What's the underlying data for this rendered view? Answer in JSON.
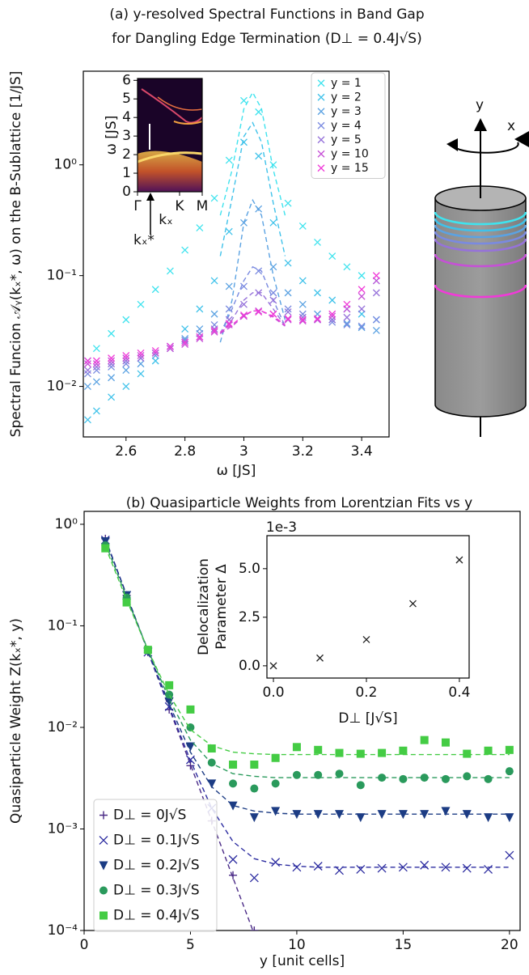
{
  "chart_data": [
    {
      "type": "scatter",
      "title": [
        "(a) y-resolved Spectral Functions in Band Gap",
        "for Dangling Edge Termination (D⊥ = 0.4J√S)"
      ],
      "xlabel": "ω  [JS]",
      "ylabel": [
        "Spectral Funcion 𝒜ᵧ(kₓ*, ω) on the B-Sublattice [1/JS]"
      ],
      "log_y": true,
      "legend": "upper right",
      "marker": "x",
      "xlim": [
        2.455,
        3.493
      ],
      "ylim": [
        0.0035,
        7
      ],
      "xticks": [
        2.6,
        2.8,
        3.0,
        3.2,
        3.4
      ],
      "yticks": [
        {
          "value": 0.01,
          "label": "10⁻²"
        },
        {
          "value": 0.1,
          "label": "10⁻¹"
        },
        {
          "value": 1,
          "label": "10⁰"
        }
      ],
      "x": [
        2.47,
        2.5,
        2.55,
        2.6,
        2.65,
        2.7,
        2.75,
        2.8,
        2.85,
        2.9,
        2.95,
        3.0,
        3.05,
        3.1,
        3.15,
        3.2,
        3.25,
        3.3,
        3.35,
        3.4,
        3.45
      ],
      "fit_x": [
        2.92,
        2.96,
        3.0,
        3.03,
        3.06,
        3.1,
        3.14
      ],
      "series": [
        {
          "name": "y = 1",
          "color": "#3fe3ee",
          "values": [
            0.017,
            0.022,
            0.03,
            0.04,
            0.055,
            0.075,
            0.11,
            0.17,
            0.27,
            0.5,
            1.1,
            3.8,
            3.0,
            1.0,
            0.45,
            0.28,
            0.2,
            0.15,
            0.12,
            0.1,
            0.09
          ],
          "fit": [
            0.35,
            0.9,
            3.2,
            4.5,
            3.2,
            0.9,
            0.35
          ]
        },
        {
          "name": "y = 2",
          "color": "#3fc2ea",
          "values": [
            0.005,
            0.006,
            0.008,
            0.01,
            0.013,
            0.017,
            0.023,
            0.033,
            0.05,
            0.09,
            0.25,
            1.6,
            1.2,
            0.3,
            0.13,
            0.09,
            0.07,
            0.06,
            0.05,
            0.045,
            0.04
          ],
          "fit": [
            0.15,
            0.5,
            1.8,
            2.4,
            1.6,
            0.45,
            0.15
          ]
        },
        {
          "name": "y = 3",
          "color": "#5ba2e2",
          "values": [
            0.01,
            0.011,
            0.012,
            0.014,
            0.016,
            0.019,
            0.022,
            0.027,
            0.033,
            0.045,
            0.08,
            0.3,
            0.4,
            0.12,
            0.07,
            0.055,
            0.045,
            0.04,
            0.037,
            0.034,
            0.032
          ],
          "fit": [
            0.025,
            0.06,
            0.3,
            0.48,
            0.35,
            0.1,
            0.04
          ]
        },
        {
          "name": "y = 4",
          "color": "#7a8ae0",
          "values": [
            0.013,
            0.014,
            0.015,
            0.016,
            0.018,
            0.02,
            0.023,
            0.026,
            0.03,
            0.036,
            0.05,
            0.08,
            0.11,
            0.07,
            0.05,
            0.045,
            0.04,
            0.038,
            0.036,
            0.035,
            0.04
          ],
          "fit": [
            0.03,
            0.05,
            0.09,
            0.12,
            0.11,
            0.06,
            0.035
          ]
        },
        {
          "name": "y = 5",
          "color": "#9672da",
          "values": [
            0.014,
            0.015,
            0.016,
            0.017,
            0.018,
            0.02,
            0.022,
            0.025,
            0.028,
            0.033,
            0.04,
            0.055,
            0.07,
            0.06,
            0.047,
            0.042,
            0.04,
            0.04,
            0.042,
            0.05,
            0.07
          ],
          "fit": [
            0.03,
            0.04,
            0.06,
            0.07,
            0.07,
            0.05,
            0.035
          ]
        },
        {
          "name": "y = 10",
          "color": "#c650d6",
          "values": [
            0.016,
            0.016,
            0.017,
            0.018,
            0.019,
            0.02,
            0.022,
            0.024,
            0.027,
            0.031,
            0.036,
            0.043,
            0.048,
            0.045,
            0.04,
            0.039,
            0.04,
            0.043,
            0.05,
            0.065,
            0.09
          ],
          "fit": [
            0.03,
            0.035,
            0.043,
            0.048,
            0.048,
            0.042,
            0.035
          ]
        },
        {
          "name": "y = 15",
          "color": "#f03ad8",
          "values": [
            0.017,
            0.017,
            0.018,
            0.019,
            0.02,
            0.021,
            0.023,
            0.025,
            0.028,
            0.032,
            0.037,
            0.044,
            0.047,
            0.045,
            0.041,
            0.04,
            0.041,
            0.045,
            0.055,
            0.075,
            0.1
          ],
          "fit": [
            0.031,
            0.036,
            0.044,
            0.048,
            0.048,
            0.043,
            0.036
          ]
        }
      ]
    },
    {
      "type": "heatmap",
      "ylabel": [
        "ω  [JS]"
      ],
      "xlim": [
        0,
        1
      ],
      "ylim": [
        0,
        6.1
      ],
      "xticks": [
        {
          "value": 0,
          "label": "Γ"
        },
        {
          "value": 0.65,
          "label": "K"
        },
        {
          "value": 1,
          "label": "M"
        }
      ],
      "yticks": [
        0,
        1,
        2,
        3,
        4,
        5,
        6
      ],
      "annotations": [
        "kₓ",
        "kₓ*"
      ]
    },
    {
      "type": "scatter",
      "title": [
        "(b) Quasiparticle Weights from Lorentzian Fits vs y"
      ],
      "xlabel": "y  [unit cells]",
      "ylabel": [
        "Quasiparticle Weight Z(kₓ*, y)"
      ],
      "log_y": true,
      "legend": "lower left",
      "xlim": [
        0,
        20.5
      ],
      "ylim": [
        0.0001,
        1.34
      ],
      "xticks": [
        0,
        5,
        10,
        15,
        20
      ],
      "yticks": [
        {
          "value": 0.0001,
          "label": "10⁻⁴"
        },
        {
          "value": 0.001,
          "label": "10⁻³"
        },
        {
          "value": 0.01,
          "label": "10⁻²"
        },
        {
          "value": 0.1,
          "label": "10⁻¹"
        },
        {
          "value": 1,
          "label": "10⁰"
        }
      ],
      "x": [
        1,
        2,
        3,
        4,
        5,
        6,
        7,
        8,
        9,
        10,
        11,
        12,
        13,
        14,
        15,
        16,
        17,
        18,
        19,
        20
      ],
      "series": [
        {
          "name": "D⊥ = 0J√S",
          "color": "#4a2a86",
          "marker": "+",
          "values": [
            0.72,
            0.2,
            0.055,
            0.015,
            0.0042,
            0.0012,
            0.00035,
            0.0001,
            null,
            null,
            null,
            null,
            null,
            null,
            null,
            null,
            null,
            null,
            null,
            null
          ],
          "fit": [
            0.72,
            0.2,
            0.0556,
            0.0154,
            0.0043,
            0.0012,
            0.00033,
            9.2e-05,
            null,
            null,
            null,
            null,
            null,
            null,
            null,
            null,
            null,
            null,
            null,
            null
          ]
        },
        {
          "name": "D⊥ = 0.1J√S",
          "color": "#2c2ca0",
          "marker": "x",
          "values": [
            0.7,
            0.2,
            0.055,
            0.016,
            0.0048,
            0.0016,
            0.0005,
            0.00033,
            0.00047,
            0.00042,
            0.00043,
            0.00039,
            0.0004,
            0.00041,
            0.00042,
            0.00044,
            0.00042,
            0.00041,
            0.0004,
            0.00055
          ],
          "fit": [
            0.72,
            0.2,
            0.056,
            0.016,
            0.0047,
            0.0016,
            0.00075,
            0.00051,
            0.00045,
            0.00043,
            0.00042,
            0.00042,
            0.00042,
            0.00042,
            0.00042,
            0.00042,
            0.00042,
            0.00042,
            0.00042,
            0.00042
          ]
        },
        {
          "name": "D⊥ = 0.2J√S",
          "color": "#1c3c84",
          "marker": "v",
          "values": [
            0.68,
            0.2,
            0.056,
            0.018,
            0.0065,
            0.0028,
            0.0017,
            0.0013,
            0.0015,
            0.0014,
            0.0014,
            0.0014,
            0.0013,
            0.0014,
            0.0014,
            0.0014,
            0.0015,
            0.0014,
            0.0013,
            0.0013
          ],
          "fit": [
            0.7,
            0.2,
            0.057,
            0.017,
            0.0057,
            0.0026,
            0.0017,
            0.0015,
            0.00143,
            0.0014,
            0.0014,
            0.0014,
            0.0014,
            0.0014,
            0.0014,
            0.0014,
            0.0014,
            0.0014,
            0.0014,
            0.0014
          ]
        },
        {
          "name": "D⊥ = 0.3J√S",
          "color": "#2a9a5c",
          "marker": "o",
          "values": [
            0.62,
            0.19,
            0.058,
            0.021,
            0.01,
            0.0045,
            0.0028,
            0.0025,
            0.0028,
            0.0034,
            0.0034,
            0.0035,
            0.0027,
            0.0032,
            0.0031,
            0.0032,
            0.0031,
            0.0033,
            0.0031,
            0.0037
          ],
          "fit": [
            0.65,
            0.19,
            0.058,
            0.019,
            0.0075,
            0.0044,
            0.0035,
            0.0033,
            0.0032,
            0.0032,
            0.0032,
            0.0032,
            0.0032,
            0.0032,
            0.0032,
            0.0032,
            0.0032,
            0.0032,
            0.0032,
            0.0032
          ]
        },
        {
          "name": "D⊥ = 0.4J√S",
          "color": "#44cc44",
          "marker": "s",
          "values": [
            0.58,
            0.17,
            0.058,
            0.026,
            0.015,
            0.0062,
            0.0043,
            0.0043,
            0.005,
            0.0064,
            0.006,
            0.0056,
            0.0055,
            0.0056,
            0.0059,
            0.0075,
            0.0071,
            0.0055,
            0.0059,
            0.006
          ],
          "fit": [
            0.6,
            0.18,
            0.058,
            0.021,
            0.0095,
            0.0066,
            0.0057,
            0.0055,
            0.0054,
            0.0054,
            0.0054,
            0.0054,
            0.0054,
            0.0054,
            0.0054,
            0.0054,
            0.0054,
            0.0054,
            0.0054,
            0.0054
          ]
        }
      ]
    },
    {
      "type": "scatter",
      "xlabel": "D⊥  [J√S]",
      "ylabel": [
        "Delocalization",
        "Parameter Δ"
      ],
      "offset_label": "1e-3",
      "marker": "x",
      "xlim": [
        -0.014,
        0.421
      ],
      "ylim": [
        -0.63,
        6.7
      ],
      "xticks": [
        {
          "value": 0,
          "label": "0.0"
        },
        {
          "value": 0.2,
          "label": "0.2"
        },
        {
          "value": 0.4,
          "label": "0.4"
        }
      ],
      "yticks": [
        {
          "value": 0,
          "label": "0.0"
        },
        {
          "value": 2.5,
          "label": "2.5"
        },
        {
          "value": 5,
          "label": "5.0"
        }
      ],
      "x": [
        0,
        0.1,
        0.2,
        0.3,
        0.4
      ],
      "series": [
        {
          "color": "#222222",
          "values": [
            0.0,
            0.4,
            1.35,
            3.2,
            5.45
          ]
        }
      ]
    }
  ],
  "diagram": {
    "labels": [
      "y",
      "x"
    ]
  }
}
